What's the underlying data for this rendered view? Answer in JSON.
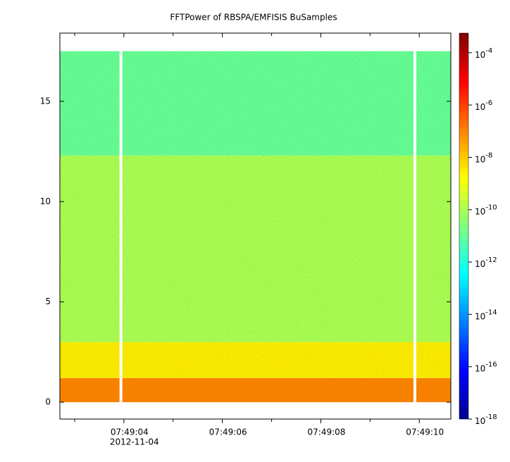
{
  "chart_data": {
    "type": "spectrogram",
    "title": "FFTPower of RBSPA/EMFISIS  BuSamples",
    "date_label": "2012-11-04",
    "xlim": [
      "07:49:02.70",
      "07:49:10.64"
    ],
    "xticks": [
      "07:49:04",
      "07:49:06",
      "07:49:08",
      "07:49:10"
    ],
    "x_minor_ticks": [
      "07:49:03",
      "07:49:05",
      "07:49:07",
      "07:49:09"
    ],
    "ylim": [
      -0.84,
      18.4
    ],
    "yticks": [
      0,
      5,
      10,
      15
    ],
    "gaps": [
      "07:49:03.94",
      "07:49:09.91"
    ],
    "bands": [
      {
        "ymin": 0,
        "ymax": 1.2,
        "value": 1e-07
      },
      {
        "ymin": 1.2,
        "ymax": 3,
        "value": 3e-09
      },
      {
        "ymin": 3,
        "ymax": 12.3,
        "value": 1e-10
      },
      {
        "ymin": 12.3,
        "ymax": 17.5,
        "value": 1e-11
      }
    ],
    "colormap": "jet",
    "zlog": true,
    "zlim": [
      1e-18,
      0.00056
    ],
    "zticks": [
      {
        "value": 1e-18,
        "label": "10",
        "exponent": "-18"
      },
      {
        "value": 1e-16,
        "label": "10",
        "exponent": "-16"
      },
      {
        "value": 1e-14,
        "label": "10",
        "exponent": "-14"
      },
      {
        "value": 1e-12,
        "label": "10",
        "exponent": "-12"
      },
      {
        "value": 1e-10,
        "label": "10",
        "exponent": "-10"
      },
      {
        "value": 1e-08,
        "label": "10",
        "exponent": "-8"
      },
      {
        "value": 1e-06,
        "label": "10",
        "exponent": "-6"
      },
      {
        "value": 0.0001,
        "label": "10",
        "exponent": "-4"
      }
    ]
  }
}
